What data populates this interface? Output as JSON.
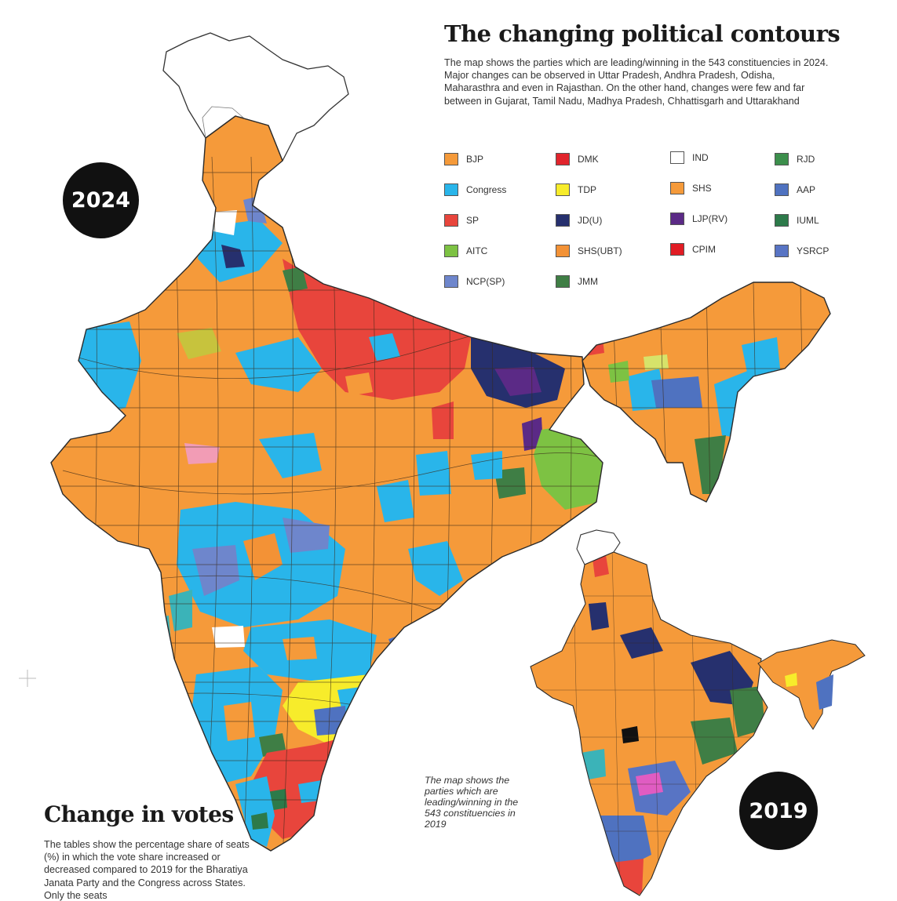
{
  "header": {
    "title": "The changing political contours",
    "intro": "The map shows the parties which are leading/winning in the 543 constituencies in 2024. Major changes can be observed in Uttar Pradesh, Andhra Pradesh, Odisha,  Maharasthra and even in Rajasthan. On the other hand, changes were few and far between in Gujarat, Tamil Nadu, Madhya Pradesh, Chhattisgarh and Uttarakhand"
  },
  "legend": {
    "items": [
      {
        "label": "BJP",
        "color": "#f59a3a"
      },
      {
        "label": "Congress",
        "color": "#29b5ea"
      },
      {
        "label": "SP",
        "color": "#e8453c"
      },
      {
        "label": "AITC",
        "color": "#7dc243"
      },
      {
        "label": "NCP(SP)",
        "color": "#6e86cc"
      },
      {
        "label": "DMK",
        "color": "#e1242c"
      },
      {
        "label": "TDP",
        "color": "#f7ec2b"
      },
      {
        "label": "JD(U)",
        "color": "#26306e"
      },
      {
        "label": "SHS(UBT)",
        "color": "#f39236"
      },
      {
        "label": "JMM",
        "color": "#3f7e45"
      },
      {
        "label": "IND",
        "color": "#ffffff"
      },
      {
        "label": "SHS",
        "color": "#f59a3a"
      },
      {
        "label": "LJP(RV)",
        "color": "#5b2a86"
      },
      {
        "label": "CPIM",
        "color": "#e11c24"
      },
      {
        "label": "RJD",
        "color": "#3c8f4c"
      },
      {
        "label": "AAP",
        "color": "#4f72c0"
      },
      {
        "label": "IUML",
        "color": "#2d7a4a"
      },
      {
        "label": "YSRCP",
        "color": "#5874c4"
      }
    ]
  },
  "badges": {
    "main_year": "2024",
    "inset_year": "2019"
  },
  "inset": {
    "caption": "The map shows the parties which are leading/winning in the 543 constituencies in 2019"
  },
  "votes_section": {
    "title": "Change in votes",
    "body": "The tables show the percentage share of seats (%) in which the vote share increased or decreased compared to 2019 for the Bharatiya Janata Party and the Congress across States. Only the seats"
  },
  "colors": {
    "background": "#ffffff",
    "border": "#333333",
    "badge": "#111111",
    "bjp": "#f59a3a",
    "congress": "#29b5ea",
    "sp": "#e8453c",
    "tdp": "#f7ec2b",
    "aitc": "#7dc243",
    "jdu": "#26306e"
  }
}
